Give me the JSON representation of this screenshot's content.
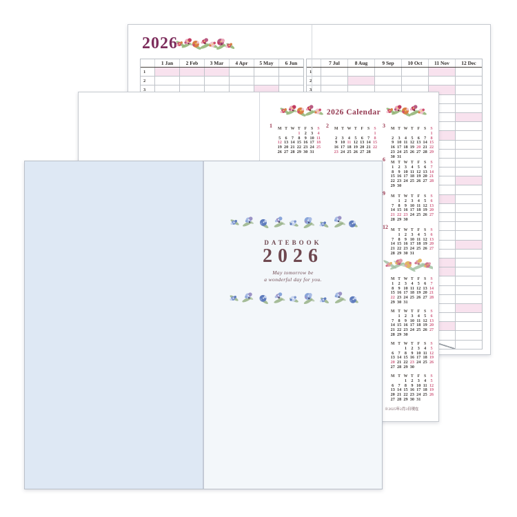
{
  "planner": {
    "title": "2026",
    "left_month_headers": [
      "1 Jan",
      "2 Feb",
      "3 Mar",
      "4 Apr",
      "5 May",
      "6 Jun"
    ],
    "right_month_headers": [
      "7 Jul",
      "8 Aug",
      "9 Sep",
      "10 Oct",
      "11 Nov",
      "12 Dec"
    ],
    "row_count": 31,
    "days_in_month": [
      31,
      28,
      31,
      30,
      31,
      30,
      31,
      31,
      30,
      31,
      30,
      31
    ],
    "highlighted_days": [
      [
        1,
        4,
        11,
        12,
        18,
        25
      ],
      [
        1,
        8,
        11,
        15,
        22,
        23
      ],
      [
        1,
        8,
        15,
        20,
        22,
        29
      ],
      [
        5,
        12,
        19,
        26,
        29
      ],
      [
        3,
        4,
        5,
        6,
        10,
        17,
        24,
        31
      ],
      [
        7,
        14,
        21,
        28
      ],
      [
        5,
        12,
        19,
        20,
        26
      ],
      [
        2,
        9,
        11,
        16,
        23,
        30
      ],
      [
        6,
        13,
        20,
        21,
        22,
        23,
        27
      ],
      [
        4,
        11,
        12,
        18,
        25
      ],
      [
        1,
        3,
        8,
        15,
        22,
        23,
        29
      ],
      [
        6,
        13,
        20,
        27
      ]
    ]
  },
  "calendar_page": {
    "title": "2026 Calendar",
    "weekdays": [
      "M",
      "T",
      "W",
      "T",
      "F",
      "S",
      "S"
    ],
    "footnote": "※2025年2月3日現在",
    "months_2026": [
      {
        "num": "1",
        "first_weekday": 3,
        "days": 31,
        "red_days": [
          1,
          4,
          11,
          12,
          18,
          25
        ]
      },
      {
        "num": "2",
        "first_weekday": 6,
        "days": 28,
        "red_days": [
          1,
          8,
          11,
          15,
          22,
          23
        ]
      },
      {
        "num": "3",
        "first_weekday": 6,
        "days": 31,
        "red_days": [
          1,
          8,
          15,
          20,
          22,
          29
        ]
      },
      null,
      null,
      {
        "num": "6",
        "first_weekday": 0,
        "days": 30,
        "red_days": [
          7,
          14,
          21,
          28
        ]
      },
      null,
      null,
      {
        "num": "9",
        "first_weekday": 1,
        "days": 30,
        "red_days": [
          6,
          13,
          20,
          21,
          22,
          23,
          27
        ]
      },
      null,
      null,
      {
        "num": "12",
        "first_weekday": 1,
        "days": 31,
        "red_days": [
          6,
          13,
          20,
          27
        ]
      }
    ],
    "months_2027": [
      null,
      null,
      {
        "num": "",
        "first_weekday": 0,
        "days": 31,
        "red_days": [
          7,
          14,
          21,
          22,
          28
        ]
      },
      null,
      null,
      {
        "num": "",
        "first_weekday": 1,
        "days": 30,
        "red_days": [
          6,
          13,
          20,
          27
        ]
      },
      null,
      null,
      {
        "num": "",
        "first_weekday": 2,
        "days": 30,
        "red_days": [
          5,
          12,
          19,
          20,
          23,
          26
        ]
      },
      null,
      null,
      {
        "num": "",
        "first_weekday": 2,
        "days": 31,
        "red_days": [
          5,
          12,
          19,
          26
        ]
      }
    ]
  },
  "cover": {
    "brand": "DATEBOOK",
    "year": "2026",
    "tagline": [
      "May tomorrow be",
      "a wonderful day for you."
    ]
  },
  "icons": {
    "planner_floral": "pink-red-floral-garland",
    "calendar_header_floral": "pink-red-floral-garland",
    "divider_floral": "green-sprig-with-pink-berries",
    "cover_floral": "blue-watercolor-floral-band"
  },
  "colors": {
    "planner_title": "#7d2d5c",
    "calendar_title": "#93374f",
    "cover_text": "#6f4850",
    "cover_left_page": "#dee8f4",
    "cover_right_page": "#f3f7fa",
    "highlight_pink": "#f8e2ee",
    "red_date": "#cf5e80"
  }
}
